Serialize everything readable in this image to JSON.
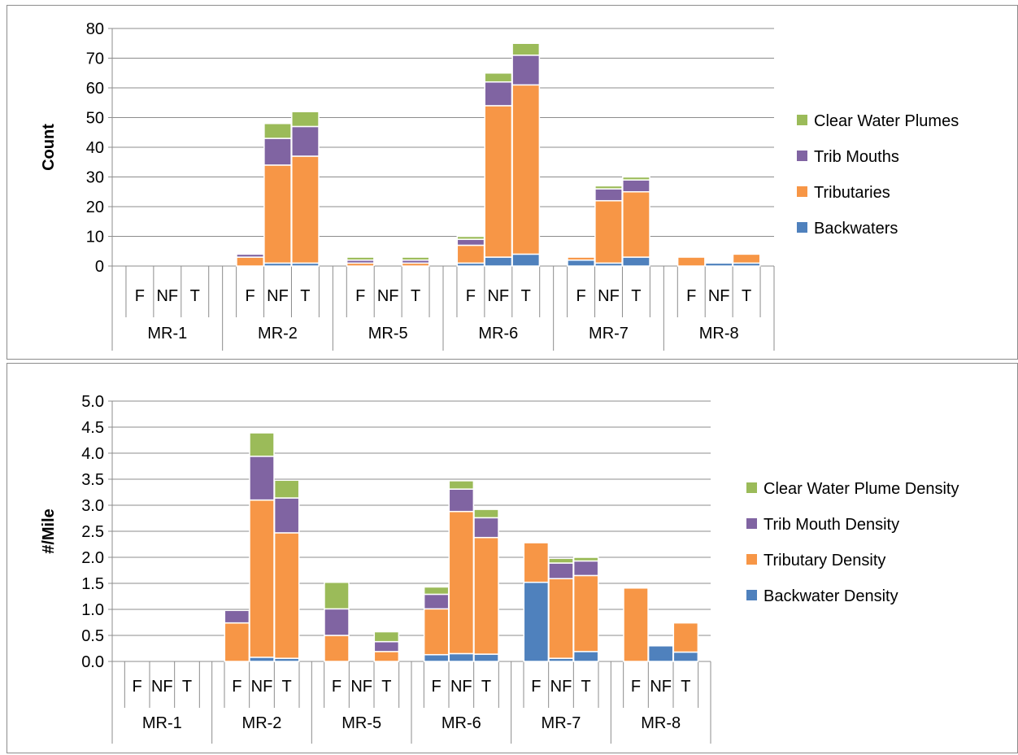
{
  "chart_data": [
    {
      "type": "bar",
      "stacked": true,
      "title": "",
      "ylabel": "Count",
      "ylim": [
        0,
        80
      ],
      "yticks": [
        "0",
        "10",
        "20",
        "30",
        "40",
        "50",
        "60",
        "70",
        "80"
      ],
      "groups": [
        "MR-1",
        "MR-2",
        "MR-5",
        "MR-6",
        "MR-7",
        "MR-8"
      ],
      "subcategories": [
        "F",
        "NF",
        "T"
      ],
      "legend_position": "right",
      "grid": true,
      "series": [
        {
          "name": "Backwaters",
          "color": "#4f81bd",
          "values": [
            0,
            0,
            0,
            0,
            1,
            1,
            0,
            0,
            0,
            1,
            3,
            4,
            2,
            1,
            3,
            0,
            1,
            1
          ]
        },
        {
          "name": "Tributaries",
          "color": "#f79646",
          "values": [
            0,
            0,
            0,
            3,
            33,
            36,
            1,
            0,
            1,
            6,
            51,
            57,
            1,
            21,
            22,
            3,
            0,
            3
          ]
        },
        {
          "name": "Trib Mouths",
          "color": "#8064a2",
          "values": [
            0,
            0,
            0,
            1,
            9,
            10,
            1,
            0,
            1,
            2,
            8,
            10,
            0,
            4,
            4,
            0,
            0,
            0
          ]
        },
        {
          "name": "Clear Water Plumes",
          "color": "#9bbb59",
          "values": [
            0,
            0,
            0,
            0,
            5,
            5,
            1,
            0,
            1,
            1,
            3,
            4,
            0,
            1,
            1,
            0,
            0,
            0
          ]
        }
      ]
    },
    {
      "type": "bar",
      "stacked": true,
      "title": "",
      "ylabel": "#/Mile",
      "ylim": [
        0,
        5
      ],
      "yticks": [
        "0.0",
        "0.5",
        "1.0",
        "1.5",
        "2.0",
        "2.5",
        "3.0",
        "3.5",
        "4.0",
        "4.5",
        "5.0"
      ],
      "groups": [
        "MR-1",
        "MR-2",
        "MR-5",
        "MR-6",
        "MR-7",
        "MR-8"
      ],
      "subcategories": [
        "F",
        "NF",
        "T"
      ],
      "legend_position": "right",
      "grid": true,
      "series": [
        {
          "name": "Backwater Density",
          "color": "#4f81bd",
          "values": [
            0,
            0,
            0,
            0,
            0.08,
            0.06,
            0,
            0,
            0,
            0.13,
            0.15,
            0.14,
            1.52,
            0.06,
            0.19,
            0,
            0.3,
            0.18
          ]
        },
        {
          "name": "Tributary Density",
          "color": "#f79646",
          "values": [
            0,
            0,
            0,
            0.74,
            3.02,
            2.41,
            0.5,
            0,
            0.19,
            0.88,
            2.73,
            2.24,
            0.76,
            1.53,
            1.46,
            1.41,
            0,
            0.56
          ]
        },
        {
          "name": "Trib Mouth Density",
          "color": "#8064a2",
          "values": [
            0,
            0,
            0,
            0.24,
            0.84,
            0.67,
            0.51,
            0,
            0.19,
            0.28,
            0.43,
            0.38,
            0,
            0.3,
            0.28,
            0,
            0,
            0
          ]
        },
        {
          "name": "Clear Water Plume Density",
          "color": "#9bbb59",
          "values": [
            0,
            0,
            0,
            0,
            0.45,
            0.34,
            0.51,
            0,
            0.19,
            0.14,
            0.16,
            0.16,
            0,
            0.09,
            0.07,
            0,
            0,
            0
          ]
        }
      ]
    }
  ]
}
